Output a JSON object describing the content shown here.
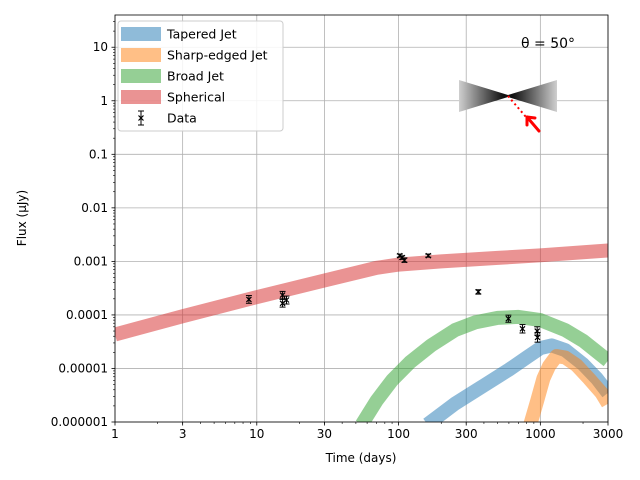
{
  "chart_data": {
    "type": "line",
    "xlabel": "Time (days)",
    "ylabel": "Flux (μJy)",
    "x_scale": "log",
    "y_scale": "log",
    "xlim": [
      1,
      3000
    ],
    "ylim": [
      1e-06,
      40
    ],
    "x_ticks": [
      {
        "value": 1,
        "label": "1"
      },
      {
        "value": 3,
        "label": "3"
      },
      {
        "value": 10,
        "label": "10"
      },
      {
        "value": 30,
        "label": "30"
      },
      {
        "value": 100,
        "label": "100"
      },
      {
        "value": 300,
        "label": "300"
      },
      {
        "value": 1000,
        "label": "1000"
      },
      {
        "value": 3000,
        "label": "3000"
      }
    ],
    "y_ticks": [
      {
        "value": 10,
        "label": "10"
      },
      {
        "value": 1,
        "label": "1"
      },
      {
        "value": 0.1,
        "label": "0.1"
      },
      {
        "value": 0.01,
        "label": "0.01"
      },
      {
        "value": 0.001,
        "label": "0.001"
      },
      {
        "value": 0.0001,
        "label": "0.0001"
      },
      {
        "value": 1e-05,
        "label": "0.00001"
      },
      {
        "value": 1e-06,
        "label": "0.000001"
      }
    ],
    "grid": true,
    "legend_position": "top-left",
    "annotation": "θ = 50°",
    "series": [
      {
        "name": "Tapered Jet",
        "kind": "band",
        "color": "#1f77b4",
        "points": [
          [
            160,
            9e-07
          ],
          [
            250,
            2.2e-06
          ],
          [
            400,
            4.8e-06
          ],
          [
            600,
            9.5e-06
          ],
          [
            800,
            1.6e-05
          ],
          [
            1000,
            2.4e-05
          ],
          [
            1200,
            2.7e-05
          ],
          [
            1500,
            2.2e-05
          ],
          [
            2000,
            1.2e-05
          ],
          [
            2500,
            6.5e-06
          ],
          [
            3000,
            3.5e-06
          ]
        ]
      },
      {
        "name": "Sharp-edged Jet",
        "kind": "band",
        "color": "#ff7f0e",
        "points": [
          [
            850,
            9e-07
          ],
          [
            950,
            2.5e-06
          ],
          [
            1050,
            6.5e-06
          ],
          [
            1150,
            1.1e-05
          ],
          [
            1300,
            1.7e-05
          ],
          [
            1500,
            1.6e-05
          ],
          [
            1800,
            1.15e-05
          ],
          [
            2200,
            6.5e-06
          ],
          [
            2700,
            3.5e-06
          ],
          [
            3000,
            2.2e-06
          ]
        ]
      },
      {
        "name": "Broad Jet",
        "kind": "band",
        "color": "#2ca02c",
        "points": [
          [
            55,
            9e-07
          ],
          [
            70,
            2.5e-06
          ],
          [
            90,
            6e-06
          ],
          [
            120,
            1.3e-05
          ],
          [
            170,
            2.7e-05
          ],
          [
            250,
            5.2e-05
          ],
          [
            350,
            7.3e-05
          ],
          [
            500,
            8.8e-05
          ],
          [
            700,
            9.2e-05
          ],
          [
            1000,
            8e-05
          ],
          [
            1500,
            5.2e-05
          ],
          [
            2000,
            3.3e-05
          ],
          [
            3000,
            1.4e-05
          ]
        ]
      },
      {
        "name": "Spherical",
        "kind": "band",
        "color": "#d62728",
        "points": [
          [
            1,
            4.3e-05
          ],
          [
            3,
            9.45e-05
          ],
          [
            10,
            0.000215
          ],
          [
            30,
            0.00044
          ],
          [
            70,
            0.00076
          ],
          [
            100,
            0.00087
          ],
          [
            200,
            0.001
          ],
          [
            500,
            0.00116
          ],
          [
            1000,
            0.0013
          ],
          [
            3000,
            0.0016
          ]
        ]
      },
      {
        "name": "Data",
        "kind": "errorbar",
        "color": "#000000",
        "points": [
          {
            "x": 8.8,
            "y": 0.000195,
            "lo": 0.000165,
            "hi": 0.00023
          },
          {
            "x": 15.2,
            "y": 0.000235,
            "lo": 0.0002,
            "hi": 0.000275
          },
          {
            "x": 15.2,
            "y": 0.000165,
            "lo": 0.00014,
            "hi": 0.000195
          },
          {
            "x": 16.2,
            "y": 0.00019,
            "lo": 0.00016,
            "hi": 0.000225
          },
          {
            "x": 102,
            "y": 0.00128,
            "lo": 0.0012,
            "hi": 0.00137
          },
          {
            "x": 106,
            "y": 0.00118,
            "lo": 0.00109,
            "hi": 0.00127
          },
          {
            "x": 110,
            "y": 0.00105,
            "lo": 0.00096,
            "hi": 0.00116
          },
          {
            "x": 162,
            "y": 0.00128,
            "lo": 0.0012,
            "hi": 0.00137
          },
          {
            "x": 365,
            "y": 0.00027,
            "lo": 0.000245,
            "hi": 0.000295
          },
          {
            "x": 595,
            "y": 8.5e-05,
            "lo": 7.3e-05,
            "hi": 9.9e-05
          },
          {
            "x": 748,
            "y": 5.5e-05,
            "lo": 4.6e-05,
            "hi": 6.6e-05
          },
          {
            "x": 950,
            "y": 5e-05,
            "lo": 4.2e-05,
            "hi": 6e-05
          },
          {
            "x": 955,
            "y": 3.8e-05,
            "lo": 3.1e-05,
            "hi": 4.7e-05
          }
        ]
      }
    ]
  }
}
